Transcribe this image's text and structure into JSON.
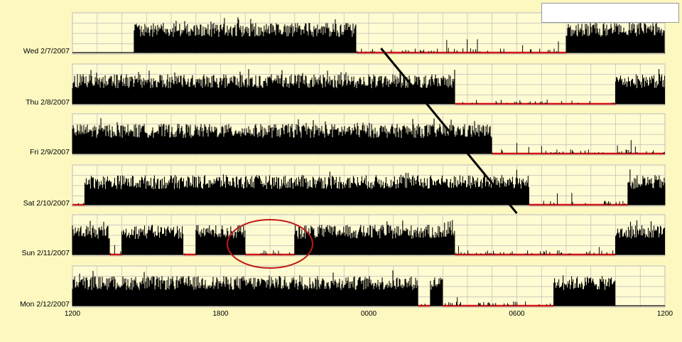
{
  "chart_data": {
    "type": "area",
    "title": "",
    "xlabel": "",
    "ylabel": "",
    "x_domain": [
      "1200",
      "1200"
    ],
    "x_ticks": [
      "1200",
      "1800",
      "0000",
      "0600",
      "1200"
    ],
    "grid": true,
    "legend": "top-right (blank)",
    "colors": {
      "background": "#fcf8c0",
      "panel": "#fffbd2",
      "grid": "#bdbdbd",
      "activity": "#000000",
      "low_activity": "#d41414",
      "trend_line": "#000000",
      "annotation_circle": "#c01818"
    },
    "series": [
      {
        "label": "Wed 2/7/2007",
        "segments": [
          {
            "from": "1200",
            "to": "1430",
            "level": "none"
          },
          {
            "from": "1430",
            "to": "2330",
            "level": "high"
          },
          {
            "from": "2330",
            "to": "0800",
            "level": "low"
          },
          {
            "from": "0800",
            "to": "1200",
            "level": "high"
          }
        ]
      },
      {
        "label": "Thu 2/8/2007",
        "segments": [
          {
            "from": "1200",
            "to": "0330",
            "level": "high"
          },
          {
            "from": "0330",
            "to": "1000",
            "level": "low"
          },
          {
            "from": "1000",
            "to": "1200",
            "level": "high"
          }
        ]
      },
      {
        "label": "Fri 2/9/2007",
        "segments": [
          {
            "from": "1200",
            "to": "0500",
            "level": "high"
          },
          {
            "from": "0500",
            "to": "1200",
            "level": "low"
          }
        ]
      },
      {
        "label": "Sat 2/10/2007",
        "segments": [
          {
            "from": "1200",
            "to": "1230",
            "level": "low"
          },
          {
            "from": "1230",
            "to": "0630",
            "level": "high"
          },
          {
            "from": "0630",
            "to": "1030",
            "level": "low"
          },
          {
            "from": "1030",
            "to": "1200",
            "level": "high"
          }
        ]
      },
      {
        "label": "Sun 2/11/2007",
        "segments": [
          {
            "from": "1200",
            "to": "1330",
            "level": "high"
          },
          {
            "from": "1330",
            "to": "1400",
            "level": "low"
          },
          {
            "from": "1400",
            "to": "1630",
            "level": "high"
          },
          {
            "from": "1630",
            "to": "1700",
            "level": "low"
          },
          {
            "from": "1700",
            "to": "1900",
            "level": "high"
          },
          {
            "from": "1900",
            "to": "2100",
            "level": "low"
          },
          {
            "from": "2100",
            "to": "0330",
            "level": "high"
          },
          {
            "from": "0330",
            "to": "1000",
            "level": "low"
          },
          {
            "from": "1000",
            "to": "1200",
            "level": "high"
          }
        ]
      },
      {
        "label": "Mon 2/12/2007",
        "segments": [
          {
            "from": "1200",
            "to": "0200",
            "level": "high"
          },
          {
            "from": "0200",
            "to": "0230",
            "level": "low"
          },
          {
            "from": "0230",
            "to": "0300",
            "level": "high"
          },
          {
            "from": "0300",
            "to": "0730",
            "level": "low"
          },
          {
            "from": "0730",
            "to": "1000",
            "level": "high"
          },
          {
            "from": "1000",
            "to": "1200",
            "level": "none"
          }
        ]
      }
    ],
    "annotations": [
      {
        "type": "line",
        "from": {
          "row": "Wed 2/7/2007",
          "time": "0030"
        },
        "to": {
          "row": "Sat 2/10/2007",
          "time": "0600"
        }
      },
      {
        "type": "ellipse",
        "row": "Sun 2/11/2007",
        "time_center": "2000"
      }
    ]
  }
}
